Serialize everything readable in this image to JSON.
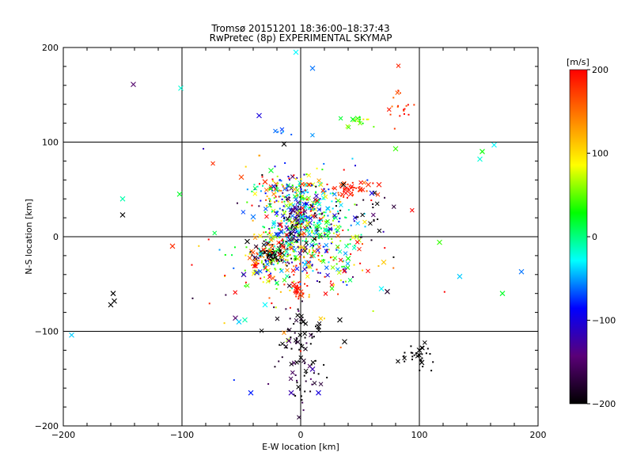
{
  "chart_data": {
    "type": "scatter",
    "title": "Tromsø 20151201 18:36:00–18:37:43",
    "subtitle": "RwPretec (8p) EXPERIMENTAL SKYMAP",
    "xlabel": "E-W location [km]",
    "ylabel": "N-S location [km]",
    "xlim": [
      -200,
      200
    ],
    "ylim": [
      -200,
      200
    ],
    "xticks": [
      "−200",
      "−100",
      "0",
      "100",
      "200"
    ],
    "yticks": [
      "200",
      "100",
      "0",
      "−100",
      "−200"
    ],
    "xtick_values": [
      -200,
      -100,
      0,
      100,
      200
    ],
    "ytick_values": [
      200,
      100,
      0,
      -100,
      -200
    ],
    "grid": true,
    "colorbar": {
      "label": "[m/s]",
      "min": -200,
      "max": 200,
      "ticks": [
        "200",
        "100",
        "0",
        "−100",
        "−200"
      ],
      "tick_values": [
        200,
        100,
        0,
        -100,
        -200
      ],
      "colors": [
        "#000000",
        "#5a0078",
        "#0000ff",
        "#00ffff",
        "#00ff00",
        "#ffff00",
        "#ff7f00",
        "#ff0000"
      ]
    },
    "crosses": [
      {
        "x": -141,
        "y": 161,
        "v": -150
      },
      {
        "x": -101,
        "y": 157,
        "v": -20
      },
      {
        "x": -4,
        "y": 195,
        "v": -30
      },
      {
        "x": 10,
        "y": 178,
        "v": -60
      },
      {
        "x": -35,
        "y": 128,
        "v": -100
      },
      {
        "x": -14,
        "y": 98,
        "v": -200
      },
      {
        "x": -150,
        "y": 40,
        "v": -10
      },
      {
        "x": -102,
        "y": 45,
        "v": 20
      },
      {
        "x": -150,
        "y": 23,
        "v": -200
      },
      {
        "x": -108,
        "y": -10,
        "v": 180
      },
      {
        "x": -158,
        "y": -60,
        "v": -200
      },
      {
        "x": -160,
        "y": -72,
        "v": -200
      },
      {
        "x": -157,
        "y": -68,
        "v": -200
      },
      {
        "x": -193,
        "y": -104,
        "v": -40
      },
      {
        "x": 80,
        "y": 93,
        "v": 40
      },
      {
        "x": 153,
        "y": 90,
        "v": 30
      },
      {
        "x": 151,
        "y": 82,
        "v": -20
      },
      {
        "x": 163,
        "y": 97,
        "v": -30
      },
      {
        "x": 117,
        "y": -6,
        "v": 40
      },
      {
        "x": 134,
        "y": -42,
        "v": -40
      },
      {
        "x": 186,
        "y": -37,
        "v": -60
      },
      {
        "x": 170,
        "y": -60,
        "v": 20
      },
      {
        "x": 73,
        "y": -58,
        "v": -180
      },
      {
        "x": 68,
        "y": -55,
        "v": -30
      },
      {
        "x": 42,
        "y": 45,
        "v": 190
      },
      {
        "x": 50,
        "y": 50,
        "v": 185
      },
      {
        "x": 57,
        "y": 55,
        "v": 180
      },
      {
        "x": 66,
        "y": 55,
        "v": 190
      },
      {
        "x": 36,
        "y": 55,
        "v": -200
      },
      {
        "x": 60,
        "y": 46,
        "v": -100
      },
      {
        "x": 44,
        "y": 124,
        "v": 20
      },
      {
        "x": 48,
        "y": 125,
        "v": 40
      },
      {
        "x": -50,
        "y": 63,
        "v": 170
      },
      {
        "x": -30,
        "y": 58,
        "v": 180
      },
      {
        "x": -40,
        "y": 21,
        "v": -60
      },
      {
        "x": -45,
        "y": -5,
        "v": -200
      },
      {
        "x": -48,
        "y": -40,
        "v": -120
      },
      {
        "x": -37,
        "y": -38,
        "v": -90
      },
      {
        "x": -55,
        "y": -86,
        "v": -150
      },
      {
        "x": -52,
        "y": -90,
        "v": -40
      },
      {
        "x": -47,
        "y": -88,
        "v": -10
      },
      {
        "x": -30,
        "y": -72,
        "v": -30
      },
      {
        "x": 2,
        "y": -90,
        "v": -200
      },
      {
        "x": 15,
        "y": -95,
        "v": -200
      },
      {
        "x": 33,
        "y": -88,
        "v": -200
      },
      {
        "x": 37,
        "y": -111,
        "v": -200
      },
      {
        "x": -42,
        "y": -165,
        "v": -80
      },
      {
        "x": -8,
        "y": -165,
        "v": -120
      },
      {
        "x": 15,
        "y": -165,
        "v": -100
      },
      {
        "x": 100,
        "y": -120,
        "v": -200
      },
      {
        "x": 102,
        "y": -133,
        "v": -200
      },
      {
        "x": 70,
        "y": -27,
        "v": 110
      },
      {
        "x": 40,
        "y": -23,
        "v": 30
      },
      {
        "x": -25,
        "y": 70,
        "v": 20
      },
      {
        "x": 10,
        "y": -140,
        "v": -120
      },
      {
        "x": -10,
        "y": -110,
        "v": -150
      }
    ],
    "clusters": [
      {
        "x": -5,
        "y": 5,
        "sx": 16,
        "sy": 28,
        "n": 420,
        "v": 0,
        "vs": 110
      },
      {
        "x": -25,
        "y": -20,
        "sx": 6,
        "sy": 5,
        "n": 70,
        "v": -195,
        "vs": 10
      },
      {
        "x": -5,
        "y": 20,
        "sx": 4,
        "sy": 18,
        "n": 60,
        "v": -150,
        "vs": 40
      },
      {
        "x": -2,
        "y": -57,
        "sx": 3,
        "sy": 4,
        "n": 30,
        "v": 190,
        "vs": 10
      },
      {
        "x": -15,
        "y": 50,
        "sx": 14,
        "sy": 8,
        "n": 80,
        "v": 30,
        "vs": 130
      },
      {
        "x": 0,
        "y": -125,
        "sx": 12,
        "sy": 25,
        "n": 90,
        "v": -190,
        "vs": 30
      },
      {
        "x": 45,
        "y": 50,
        "sx": 10,
        "sy": 4,
        "n": 40,
        "v": 185,
        "vs": 15
      },
      {
        "x": 30,
        "y": -20,
        "sx": 15,
        "sy": 25,
        "n": 70,
        "v": 60,
        "vs": 110
      },
      {
        "x": 100,
        "y": -125,
        "sx": 8,
        "sy": 8,
        "n": 30,
        "v": -200,
        "vs": 5
      },
      {
        "x": 85,
        "y": 135,
        "sx": 6,
        "sy": 18,
        "n": 20,
        "v": 180,
        "vs": 20
      },
      {
        "x": 50,
        "y": 123,
        "sx": 7,
        "sy": 3,
        "n": 15,
        "v": 60,
        "vs": 30
      },
      {
        "x": -30,
        "y": -30,
        "sx": 10,
        "sy": 15,
        "n": 90,
        "v": 120,
        "vs": 80
      },
      {
        "x": 15,
        "y": 20,
        "sx": 12,
        "sy": 15,
        "n": 120,
        "v": -20,
        "vs": 80
      },
      {
        "x": -15,
        "y": 110,
        "sx": 5,
        "sy": 3,
        "n": 6,
        "v": -60,
        "vs": 20
      },
      {
        "x": 60,
        "y": 20,
        "sx": 8,
        "sy": 15,
        "n": 20,
        "v": -200,
        "vs": 30
      },
      {
        "x": 0,
        "y": 0,
        "sx": 45,
        "sy": 45,
        "n": 100,
        "v": 20,
        "vs": 140
      }
    ]
  }
}
